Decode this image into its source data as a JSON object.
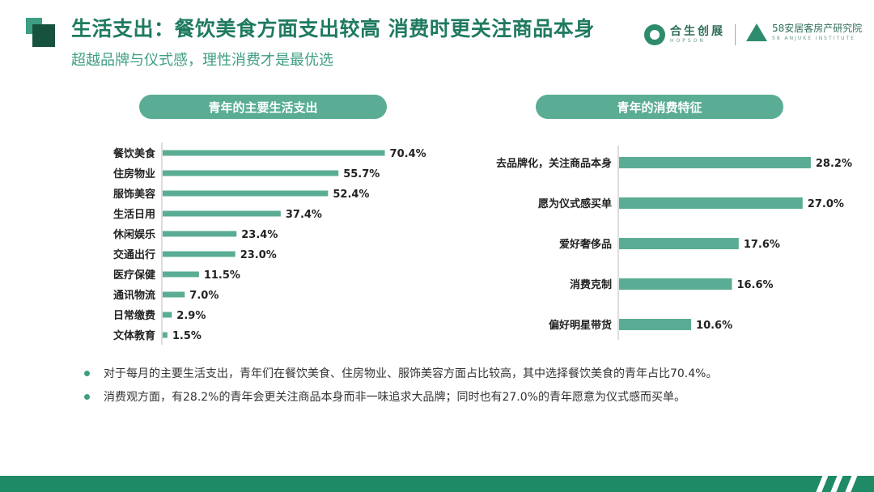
{
  "header": {
    "title": "生活支出：餐饮美食方面支出较高 消费时更关注商品本身",
    "subtitle": "超越品牌与仪式感，理性消费才是最优选"
  },
  "logos": {
    "left": {
      "cn": "合生创展",
      "en": "HOPSON"
    },
    "right": {
      "cn": "58安居客房产研究院",
      "en": "58 ANJUKE INSTITUTE"
    }
  },
  "colors": {
    "accent": "#1f7a60",
    "bar": "#5aad94",
    "pill": "#5aad94",
    "footer": "#1f8a66"
  },
  "chart_data": [
    {
      "type": "bar",
      "orientation": "horizontal",
      "title": "青年的主要生活支出",
      "categories": [
        "餐饮美食",
        "住房物业",
        "服饰美容",
        "生活日用",
        "休闲娱乐",
        "交通出行",
        "医疗保健",
        "通讯物流",
        "日常缴费",
        "文体教育"
      ],
      "values": [
        70.4,
        55.7,
        52.4,
        37.4,
        23.4,
        23.0,
        11.5,
        7.0,
        2.9,
        1.5
      ],
      "labels": [
        "70.4%",
        "55.7%",
        "52.4%",
        "37.4%",
        "23.4%",
        "23.0%",
        "11.5%",
        "7.0%",
        "2.9%",
        "1.5%"
      ],
      "unit": "%"
    },
    {
      "type": "bar",
      "orientation": "horizontal",
      "title": "青年的消费特征",
      "categories": [
        "去品牌化，关注商品本身",
        "愿为仪式感买单",
        "爱好奢侈品",
        "消费克制",
        "偏好明星带货"
      ],
      "values": [
        28.2,
        27.0,
        17.6,
        16.6,
        10.6
      ],
      "labels": [
        "28.2%",
        "27.0%",
        "17.6%",
        "16.6%",
        "10.6%"
      ],
      "unit": "%"
    }
  ],
  "notes": [
    "对于每月的主要生活支出，青年们在餐饮美食、住房物业、服饰美容方面占比较高，其中选择餐饮美食的青年占比70.4%。",
    "消费观方面，有28.2%的青年会更关注商品本身而非一味追求大品牌；同时也有27.0%的青年愿意为仪式感而买单。"
  ]
}
